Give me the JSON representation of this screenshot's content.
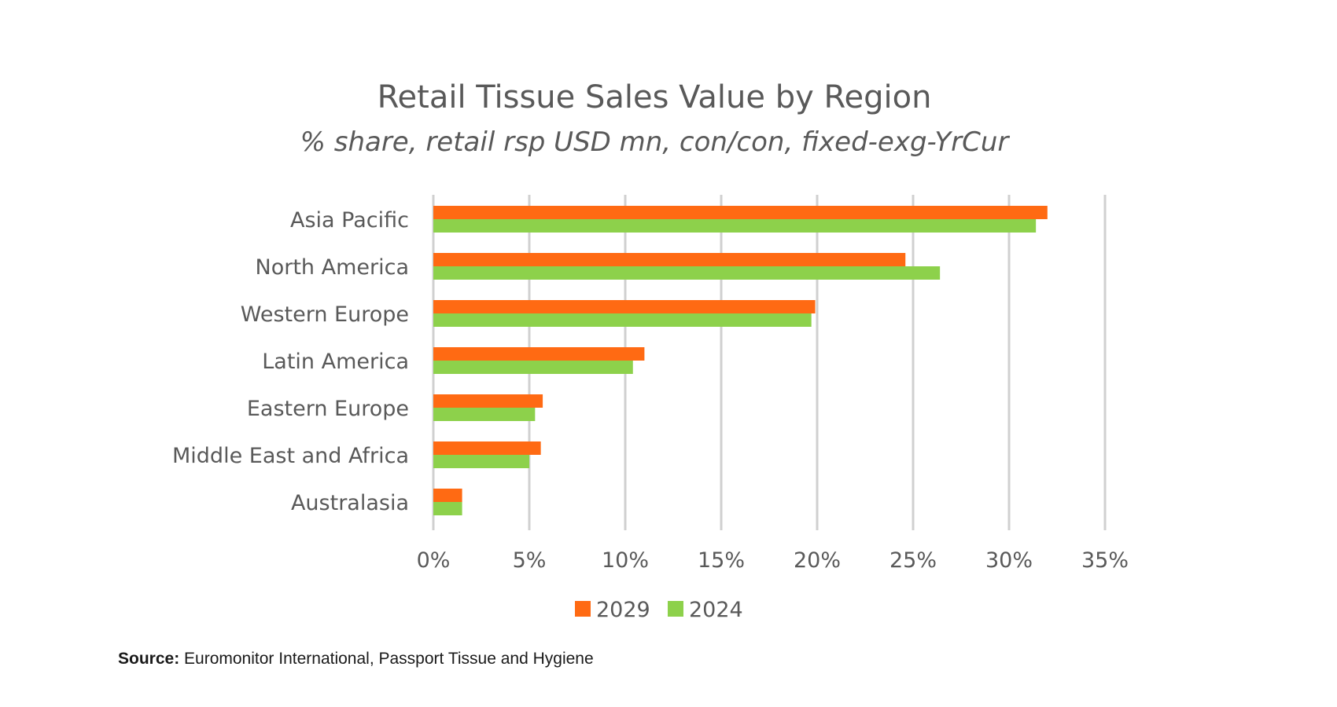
{
  "chart_data": {
    "type": "bar",
    "orientation": "horizontal",
    "title": "Retail Tissue Sales Value by Region",
    "subtitle": "% share, retail rsp USD mn, con/con, fixed-exg-YrCur",
    "categories": [
      "Asia Pacific",
      "North America",
      "Western Europe",
      "Latin America",
      "Eastern Europe",
      "Middle East and Africa",
      "Australasia"
    ],
    "series": [
      {
        "name": "2029",
        "color": "#FF6A13",
        "values": [
          32.0,
          24.6,
          19.9,
          11.0,
          5.7,
          5.6,
          1.5
        ]
      },
      {
        "name": "2024",
        "color": "#8DD14B",
        "values": [
          31.4,
          26.4,
          19.7,
          10.4,
          5.3,
          5.0,
          1.5
        ]
      }
    ],
    "xlim": [
      0,
      35
    ],
    "xticks": [
      "0%",
      "5%",
      "10%",
      "15%",
      "20%",
      "25%",
      "30%",
      "35%"
    ],
    "xtick_values": [
      0,
      5,
      10,
      15,
      20,
      25,
      30,
      35
    ],
    "grid": true,
    "legend_position": "bottom"
  },
  "source": {
    "label": "Source:",
    "text": "Euromonitor International, Passport Tissue and Hygiene"
  }
}
